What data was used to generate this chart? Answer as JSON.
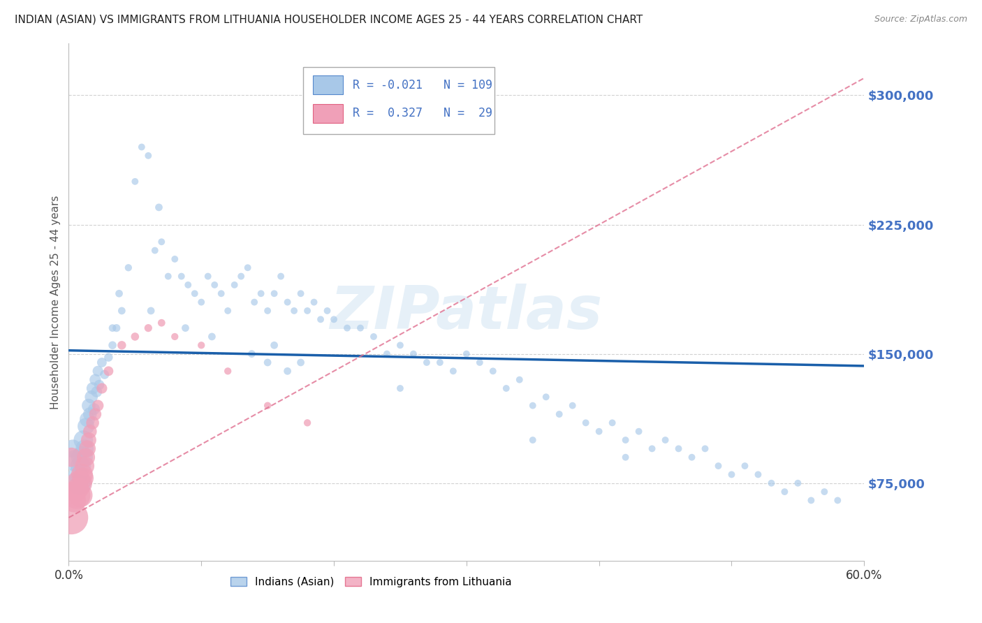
{
  "title": "INDIAN (ASIAN) VS IMMIGRANTS FROM LITHUANIA HOUSEHOLDER INCOME AGES 25 - 44 YEARS CORRELATION CHART",
  "source": "Source: ZipAtlas.com",
  "ylabel": "Householder Income Ages 25 - 44 years",
  "xlim": [
    0.0,
    0.6
  ],
  "ylim": [
    30000,
    330000
  ],
  "yticks": [
    75000,
    150000,
    225000,
    300000
  ],
  "ytick_labels": [
    "$75,000",
    "$150,000",
    "$225,000",
    "$300,000"
  ],
  "xticks": [
    0.0,
    0.1,
    0.2,
    0.3,
    0.4,
    0.5,
    0.6
  ],
  "xtick_labels": [
    "0.0%",
    "",
    "",
    "",
    "",
    "",
    "60.0%"
  ],
  "color_blue": "#a8c8e8",
  "color_blue_dark": "#5588cc",
  "color_blue_line": "#1a5faa",
  "color_pink": "#f0a0b8",
  "color_pink_dark": "#e06080",
  "color_pink_line": "#e07090",
  "color_tick_label": "#4472c4",
  "watermark": "ZIPatlas",
  "blue_line_y0": 152000,
  "blue_line_y1": 143000,
  "pink_line_y0": 55000,
  "pink_line_y1": 310000,
  "blue_x": [
    0.003,
    0.005,
    0.007,
    0.008,
    0.009,
    0.01,
    0.011,
    0.012,
    0.013,
    0.014,
    0.015,
    0.016,
    0.017,
    0.018,
    0.019,
    0.02,
    0.021,
    0.022,
    0.023,
    0.025,
    0.027,
    0.03,
    0.033,
    0.036,
    0.04,
    0.045,
    0.05,
    0.055,
    0.06,
    0.065,
    0.07,
    0.075,
    0.08,
    0.085,
    0.09,
    0.095,
    0.1,
    0.105,
    0.11,
    0.115,
    0.12,
    0.125,
    0.13,
    0.135,
    0.14,
    0.145,
    0.15,
    0.155,
    0.16,
    0.165,
    0.17,
    0.175,
    0.18,
    0.185,
    0.19,
    0.195,
    0.2,
    0.21,
    0.22,
    0.23,
    0.24,
    0.25,
    0.26,
    0.27,
    0.28,
    0.29,
    0.3,
    0.31,
    0.32,
    0.33,
    0.34,
    0.35,
    0.36,
    0.37,
    0.38,
    0.39,
    0.4,
    0.41,
    0.42,
    0.43,
    0.44,
    0.45,
    0.46,
    0.47,
    0.48,
    0.49,
    0.5,
    0.51,
    0.52,
    0.53,
    0.54,
    0.55,
    0.56,
    0.57,
    0.58,
    0.35,
    0.25,
    0.42,
    0.033,
    0.068,
    0.155,
    0.175,
    0.038,
    0.062,
    0.088,
    0.108,
    0.138,
    0.15,
    0.165
  ],
  "blue_y": [
    95000,
    88000,
    80000,
    75000,
    85000,
    90000,
    100000,
    95000,
    108000,
    112000,
    120000,
    115000,
    125000,
    130000,
    118000,
    135000,
    128000,
    140000,
    132000,
    145000,
    138000,
    148000,
    155000,
    165000,
    175000,
    200000,
    250000,
    270000,
    265000,
    210000,
    215000,
    195000,
    205000,
    195000,
    190000,
    185000,
    180000,
    195000,
    190000,
    185000,
    175000,
    190000,
    195000,
    200000,
    180000,
    185000,
    175000,
    185000,
    195000,
    180000,
    175000,
    185000,
    175000,
    180000,
    170000,
    175000,
    170000,
    165000,
    165000,
    160000,
    150000,
    155000,
    150000,
    145000,
    145000,
    140000,
    150000,
    145000,
    140000,
    130000,
    135000,
    120000,
    125000,
    115000,
    120000,
    110000,
    105000,
    110000,
    100000,
    105000,
    95000,
    100000,
    95000,
    90000,
    95000,
    85000,
    80000,
    85000,
    80000,
    75000,
    70000,
    75000,
    65000,
    70000,
    65000,
    100000,
    130000,
    90000,
    165000,
    235000,
    155000,
    145000,
    185000,
    175000,
    165000,
    160000,
    150000,
    145000,
    140000
  ],
  "blue_sizes": [
    350,
    500,
    400,
    600,
    450,
    500,
    400,
    350,
    300,
    250,
    200,
    200,
    180,
    160,
    150,
    140,
    130,
    120,
    110,
    100,
    90,
    80,
    70,
    65,
    60,
    55,
    50,
    50,
    50,
    50,
    50,
    50,
    50,
    50,
    50,
    50,
    50,
    50,
    50,
    50,
    50,
    50,
    50,
    50,
    50,
    50,
    50,
    50,
    50,
    50,
    50,
    50,
    50,
    50,
    50,
    50,
    50,
    50,
    50,
    50,
    50,
    50,
    50,
    50,
    50,
    50,
    50,
    50,
    50,
    50,
    50,
    50,
    50,
    50,
    50,
    50,
    50,
    50,
    50,
    50,
    50,
    50,
    50,
    50,
    50,
    50,
    50,
    50,
    50,
    50,
    50,
    50,
    50,
    50,
    50,
    50,
    50,
    50,
    60,
    60,
    60,
    60,
    60,
    60,
    60,
    60,
    60,
    60,
    60
  ],
  "pink_x": [
    0.002,
    0.004,
    0.005,
    0.006,
    0.007,
    0.008,
    0.009,
    0.01,
    0.011,
    0.012,
    0.013,
    0.014,
    0.015,
    0.016,
    0.018,
    0.02,
    0.022,
    0.025,
    0.03,
    0.04,
    0.05,
    0.06,
    0.07,
    0.08,
    0.1,
    0.12,
    0.15,
    0.18,
    0.002
  ],
  "pink_y": [
    55000,
    65000,
    70000,
    68000,
    72000,
    75000,
    68000,
    80000,
    78000,
    85000,
    90000,
    95000,
    100000,
    105000,
    110000,
    115000,
    120000,
    130000,
    140000,
    155000,
    160000,
    165000,
    168000,
    160000,
    155000,
    140000,
    120000,
    110000,
    90000
  ],
  "pink_sizes": [
    1200,
    600,
    500,
    800,
    500,
    700,
    600,
    500,
    450,
    400,
    350,
    300,
    250,
    200,
    180,
    160,
    140,
    120,
    100,
    80,
    70,
    65,
    60,
    55,
    55,
    55,
    55,
    55,
    400
  ]
}
